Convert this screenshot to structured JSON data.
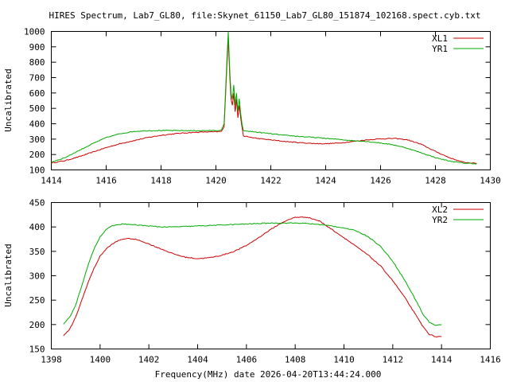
{
  "title": "HIRES Spectrum, Lab7_GL80, file:Skynet_61150_Lab7_GL80_151874_102168.spect.cyb.txt",
  "xlabel": "Frequency(MHz) date 2026-04-20T13:44:24.000",
  "colors": {
    "red": "#cc0000",
    "green": "#00aa00"
  },
  "chart_data": [
    {
      "type": "line",
      "ylabel": "Uncalibrated",
      "xlim": [
        1414,
        1430
      ],
      "ylim": [
        100,
        1000
      ],
      "x_ticks": [
        "1414",
        "1416",
        "1418",
        "1420",
        "1422",
        "1424",
        "1426",
        "1428",
        "1430"
      ],
      "y_ticks": [
        "100",
        "200",
        "300",
        "400",
        "500",
        "600",
        "700",
        "800",
        "900",
        "1000"
      ],
      "series": [
        {
          "name": "XL1",
          "color": "#cc0000",
          "x": [
            1414.0,
            1414.5,
            1415.0,
            1415.5,
            1416.0,
            1416.5,
            1417.0,
            1417.5,
            1418.0,
            1418.5,
            1419.0,
            1419.5,
            1420.0,
            1420.2,
            1420.3,
            1420.4,
            1420.45,
            1420.5,
            1420.55,
            1420.6,
            1420.65,
            1420.7,
            1420.75,
            1420.8,
            1420.85,
            1420.9,
            1420.95,
            1421.0,
            1421.5,
            1422.0,
            1422.5,
            1423.0,
            1423.5,
            1424.0,
            1424.5,
            1425.0,
            1425.5,
            1426.0,
            1426.5,
            1427.0,
            1427.5,
            1428.0,
            1428.5,
            1429.0,
            1429.5
          ],
          "y": [
            145,
            160,
            185,
            215,
            245,
            270,
            290,
            310,
            325,
            335,
            342,
            346,
            348,
            350,
            380,
            780,
            960,
            720,
            560,
            520,
            600,
            480,
            560,
            440,
            520,
            440,
            380,
            320,
            305,
            295,
            285,
            278,
            272,
            270,
            275,
            285,
            295,
            302,
            305,
            295,
            265,
            220,
            180,
            150,
            142
          ]
        },
        {
          "name": "YR1",
          "color": "#00aa00",
          "x": [
            1414.0,
            1414.5,
            1415.0,
            1415.5,
            1416.0,
            1416.5,
            1417.0,
            1417.5,
            1418.0,
            1418.5,
            1419.0,
            1419.5,
            1420.0,
            1420.2,
            1420.3,
            1420.4,
            1420.45,
            1420.5,
            1420.55,
            1420.6,
            1420.65,
            1420.7,
            1420.75,
            1420.8,
            1420.85,
            1420.9,
            1420.95,
            1421.0,
            1421.5,
            1422.0,
            1422.5,
            1423.0,
            1423.5,
            1424.0,
            1424.5,
            1425.0,
            1425.5,
            1426.0,
            1426.5,
            1427.0,
            1427.5,
            1428.0,
            1428.5,
            1429.0,
            1429.5
          ],
          "y": [
            150,
            180,
            225,
            270,
            310,
            335,
            350,
            355,
            356,
            356,
            355,
            355,
            356,
            358,
            400,
            820,
            1000,
            760,
            600,
            560,
            650,
            520,
            600,
            480,
            560,
            470,
            400,
            355,
            345,
            335,
            325,
            318,
            312,
            305,
            298,
            290,
            285,
            275,
            262,
            240,
            210,
            180,
            158,
            145,
            140
          ]
        }
      ]
    },
    {
      "type": "line",
      "ylabel": "Uncalibrated",
      "xlim": [
        1398,
        1416
      ],
      "ylim": [
        150,
        450
      ],
      "x_ticks": [
        "1398",
        "1400",
        "1402",
        "1404",
        "1406",
        "1408",
        "1410",
        "1412",
        "1414",
        "1416"
      ],
      "y_ticks": [
        "150",
        "200",
        "250",
        "300",
        "350",
        "400",
        "450"
      ],
      "series": [
        {
          "name": "XL2",
          "color": "#cc0000",
          "x": [
            1398.5,
            1398.75,
            1399.0,
            1399.25,
            1399.5,
            1399.75,
            1400.0,
            1400.25,
            1400.5,
            1400.75,
            1401.0,
            1401.25,
            1401.5,
            1401.75,
            1402.0,
            1402.5,
            1403.0,
            1403.5,
            1404.0,
            1404.5,
            1405.0,
            1405.5,
            1406.0,
            1406.5,
            1407.0,
            1407.5,
            1408.0,
            1408.5,
            1409.0,
            1409.5,
            1410.0,
            1410.5,
            1411.0,
            1411.5,
            1412.0,
            1412.5,
            1413.0,
            1413.25,
            1413.5,
            1413.75,
            1414.0
          ],
          "y": [
            177,
            190,
            215,
            250,
            285,
            315,
            340,
            355,
            365,
            372,
            376,
            376,
            374,
            370,
            365,
            355,
            345,
            338,
            335,
            337,
            342,
            350,
            362,
            378,
            395,
            410,
            420,
            420,
            412,
            395,
            378,
            360,
            342,
            320,
            290,
            255,
            215,
            195,
            180,
            175,
            175
          ]
        },
        {
          "name": "YR2",
          "color": "#00aa00",
          "x": [
            1398.5,
            1398.75,
            1399.0,
            1399.25,
            1399.5,
            1399.75,
            1400.0,
            1400.25,
            1400.5,
            1400.75,
            1401.0,
            1401.25,
            1401.5,
            1401.75,
            1402.0,
            1402.5,
            1403.0,
            1403.5,
            1404.0,
            1404.5,
            1405.0,
            1405.5,
            1406.0,
            1406.5,
            1407.0,
            1407.5,
            1408.0,
            1408.5,
            1409.0,
            1409.5,
            1410.0,
            1410.5,
            1411.0,
            1411.5,
            1412.0,
            1412.5,
            1413.0,
            1413.25,
            1413.5,
            1413.75,
            1414.0
          ],
          "y": [
            200,
            215,
            240,
            280,
            320,
            355,
            380,
            395,
            402,
            405,
            406,
            405,
            404,
            403,
            402,
            400,
            400,
            401,
            402,
            403,
            404,
            405,
            406,
            407,
            408,
            408,
            408,
            407,
            405,
            402,
            398,
            392,
            380,
            360,
            330,
            290,
            245,
            220,
            205,
            198,
            200
          ]
        }
      ]
    }
  ]
}
